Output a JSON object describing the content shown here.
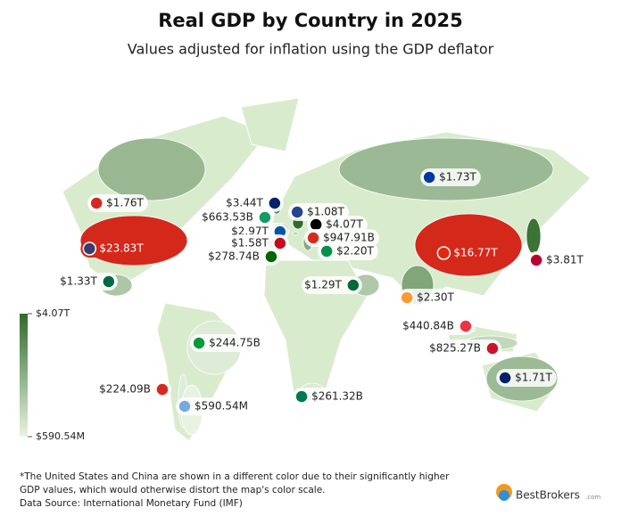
{
  "title": "Real GDP by Country in 2025",
  "subtitle": "Values adjusted for inflation using the GDP deflator",
  "legend": {
    "max": {
      "value": 4070000000000,
      "label": "$4.07T"
    },
    "min": {
      "value": 590540000,
      "label": "$590.54M"
    },
    "colors": [
      "#e9f3e2",
      "#2f6b2a"
    ]
  },
  "highlight_color": "#d4281b",
  "countries": [
    {
      "label": "$1.76T",
      "value": 1760000000000
    },
    {
      "label": "$23.83T",
      "value": 23830000000000,
      "highlight": true
    },
    {
      "label": "$1.33T",
      "value": 1330000000000
    },
    {
      "label": "$3.44T",
      "value": 3440000000000
    },
    {
      "label": "$1.08T",
      "value": 1080000000000
    },
    {
      "label": "$663.53B",
      "value": 663530000000
    },
    {
      "label": "$2.97T",
      "value": 2970000000000
    },
    {
      "label": "$4.07T",
      "value": 4070000000000
    },
    {
      "label": "$947.91B",
      "value": 947910000000
    },
    {
      "label": "$1.58T",
      "value": 1580000000000
    },
    {
      "label": "$278.74B",
      "value": 278740000000
    },
    {
      "label": "$2.20T",
      "value": 2200000000000
    },
    {
      "label": "$1.29T",
      "value": 1290000000000
    },
    {
      "label": "$2.30T",
      "value": 2300000000000
    },
    {
      "label": "$16.77T",
      "value": 16770000000000,
      "highlight": true
    },
    {
      "label": "$3.81T",
      "value": 3810000000000
    },
    {
      "label": "$440.84B",
      "value": 440840000000
    },
    {
      "label": "$825.27B",
      "value": 825270000000
    },
    {
      "label": "$1.71T",
      "value": 1710000000000
    },
    {
      "label": "$1.73T",
      "value": 1730000000000
    },
    {
      "label": "$244.75B",
      "value": 244750000000
    },
    {
      "label": "$224.09B",
      "value": 224090000000
    },
    {
      "label": "$590.54M",
      "value": 590540000
    },
    {
      "label": "$261.32B",
      "value": 261320000000
    }
  ],
  "footnote": "*The United States and China are shown in a different color due to their significantly higher GDP values, which would otherwise distort the map's color scale.",
  "source": "Data Source: International Monetary Fund (IMF)",
  "brand": "BestBrokers",
  "brand_suffix": ".com"
}
